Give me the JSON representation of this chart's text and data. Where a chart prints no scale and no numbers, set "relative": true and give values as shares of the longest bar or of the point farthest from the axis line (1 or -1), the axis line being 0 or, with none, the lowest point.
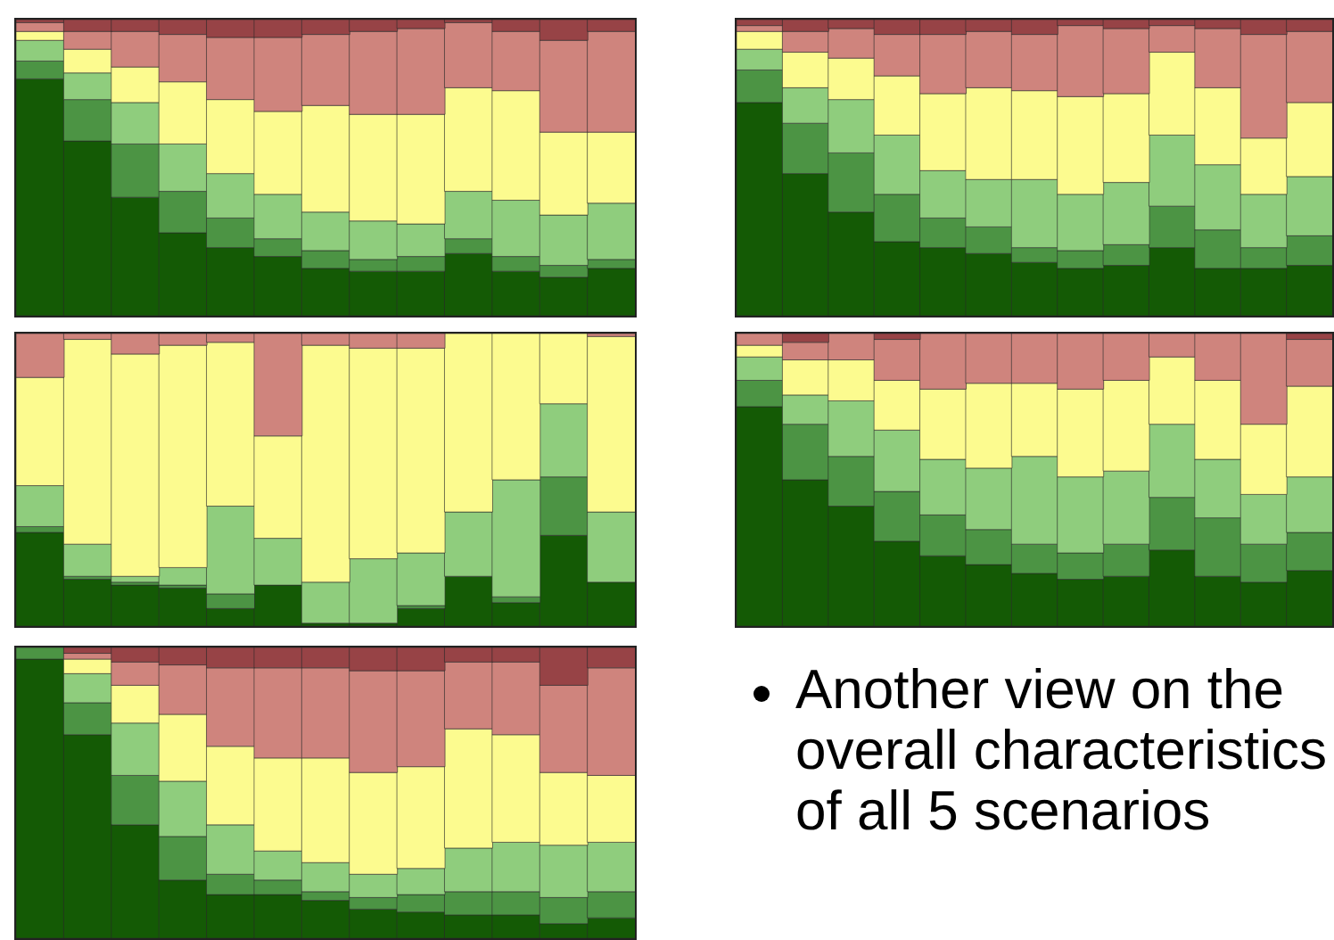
{
  "chart_data": [
    {
      "type": "bar",
      "stacked": true,
      "relative": true,
      "tick_labels": false,
      "categories": [
        null,
        null,
        null,
        null,
        null,
        null,
        null,
        null,
        null,
        null,
        null,
        null,
        null
      ],
      "series": [
        {
          "color": "#145a05",
          "values": [
            0.8,
            0.59,
            0.4,
            0.28,
            0.23,
            0.2,
            0.16,
            0.15,
            0.15,
            0.21,
            0.15,
            0.13,
            0.16
          ]
        },
        {
          "color": "#4c9444",
          "values": [
            0.06,
            0.14,
            0.18,
            0.14,
            0.1,
            0.06,
            0.06,
            0.04,
            0.05,
            0.05,
            0.05,
            0.04,
            0.03
          ]
        },
        {
          "color": "#8fcd7d",
          "values": [
            0.07,
            0.09,
            0.14,
            0.16,
            0.15,
            0.15,
            0.13,
            0.13,
            0.11,
            0.16,
            0.19,
            0.17,
            0.19
          ]
        },
        {
          "color": "#fcfb8f",
          "values": [
            0.03,
            0.08,
            0.12,
            0.21,
            0.25,
            0.28,
            0.36,
            0.36,
            0.37,
            0.35,
            0.37,
            0.28,
            0.24
          ]
        },
        {
          "color": "#cf847d",
          "values": [
            0.03,
            0.06,
            0.12,
            0.16,
            0.21,
            0.25,
            0.24,
            0.28,
            0.29,
            0.22,
            0.2,
            0.31,
            0.34
          ]
        },
        {
          "color": "#974346",
          "values": [
            0.01,
            0.04,
            0.04,
            0.05,
            0.06,
            0.06,
            0.05,
            0.04,
            0.03,
            0.01,
            0.04,
            0.07,
            0.04
          ]
        }
      ]
    },
    {
      "type": "bar",
      "stacked": true,
      "relative": true,
      "tick_labels": false,
      "categories": [
        null,
        null,
        null,
        null,
        null,
        null,
        null,
        null,
        null,
        null,
        null,
        null,
        null
      ],
      "series": [
        {
          "color": "#145a05",
          "values": [
            0.72,
            0.48,
            0.35,
            0.25,
            0.23,
            0.21,
            0.18,
            0.16,
            0.17,
            0.23,
            0.16,
            0.16,
            0.17
          ]
        },
        {
          "color": "#4c9444",
          "values": [
            0.11,
            0.17,
            0.2,
            0.16,
            0.1,
            0.09,
            0.05,
            0.06,
            0.07,
            0.14,
            0.13,
            0.07,
            0.1
          ]
        },
        {
          "color": "#8fcd7d",
          "values": [
            0.07,
            0.12,
            0.18,
            0.2,
            0.16,
            0.16,
            0.23,
            0.19,
            0.21,
            0.24,
            0.22,
            0.18,
            0.2
          ]
        },
        {
          "color": "#fcfb8f",
          "values": [
            0.06,
            0.12,
            0.14,
            0.2,
            0.26,
            0.31,
            0.3,
            0.33,
            0.3,
            0.28,
            0.26,
            0.19,
            0.25
          ]
        },
        {
          "color": "#cf847d",
          "values": [
            0.02,
            0.07,
            0.1,
            0.14,
            0.2,
            0.19,
            0.19,
            0.24,
            0.22,
            0.09,
            0.2,
            0.35,
            0.24
          ]
        },
        {
          "color": "#974346",
          "values": [
            0.02,
            0.04,
            0.03,
            0.05,
            0.05,
            0.04,
            0.05,
            0.02,
            0.03,
            0.02,
            0.03,
            0.05,
            0.04
          ]
        }
      ]
    },
    {
      "type": "bar",
      "stacked": true,
      "relative": true,
      "tick_labels": false,
      "categories": [
        null,
        null,
        null,
        null,
        null,
        null,
        null,
        null,
        null,
        null,
        null,
        null,
        null
      ],
      "series": [
        {
          "color": "#145a05",
          "values": [
            0.32,
            0.16,
            0.14,
            0.13,
            0.06,
            0.14,
            0.01,
            0.01,
            0.06,
            0.17,
            0.08,
            0.31,
            0.15
          ]
        },
        {
          "color": "#4c9444",
          "values": [
            0.02,
            0.01,
            0.01,
            0.01,
            0.05,
            0,
            0,
            0,
            0.01,
            0,
            0.02,
            0.2,
            0
          ]
        },
        {
          "color": "#8fcd7d",
          "values": [
            0.14,
            0.11,
            0.02,
            0.06,
            0.3,
            0.16,
            0.14,
            0.22,
            0.18,
            0.22,
            0.4,
            0.25,
            0.24
          ]
        },
        {
          "color": "#fcfb8f",
          "values": [
            0.37,
            0.7,
            0.76,
            0.76,
            0.56,
            0.35,
            0.81,
            0.72,
            0.7,
            0.61,
            0.5,
            0.24,
            0.6
          ]
        },
        {
          "color": "#cf847d",
          "values": [
            0.15,
            0.02,
            0.07,
            0.04,
            0.03,
            0.35,
            0.04,
            0.05,
            0.05,
            0,
            0,
            0,
            0.01
          ]
        },
        {
          "color": "#974346",
          "values": [
            0,
            0,
            0,
            0,
            0,
            0,
            0,
            0,
            0,
            0,
            0,
            0,
            0
          ]
        }
      ]
    },
    {
      "type": "bar",
      "stacked": true,
      "relative": true,
      "tick_labels": false,
      "categories": [
        null,
        null,
        null,
        null,
        null,
        null,
        null,
        null,
        null,
        null,
        null,
        null,
        null
      ],
      "series": [
        {
          "color": "#145a05",
          "values": [
            0.75,
            0.5,
            0.41,
            0.29,
            0.24,
            0.21,
            0.18,
            0.16,
            0.17,
            0.26,
            0.17,
            0.15,
            0.19
          ]
        },
        {
          "color": "#4c9444",
          "values": [
            0.09,
            0.19,
            0.17,
            0.17,
            0.14,
            0.12,
            0.1,
            0.09,
            0.11,
            0.18,
            0.2,
            0.13,
            0.13
          ]
        },
        {
          "color": "#8fcd7d",
          "values": [
            0.08,
            0.1,
            0.19,
            0.21,
            0.19,
            0.21,
            0.3,
            0.26,
            0.25,
            0.25,
            0.2,
            0.17,
            0.19
          ]
        },
        {
          "color": "#fcfb8f",
          "values": [
            0.04,
            0.12,
            0.14,
            0.17,
            0.24,
            0.29,
            0.25,
            0.3,
            0.31,
            0.23,
            0.27,
            0.24,
            0.31
          ]
        },
        {
          "color": "#cf847d",
          "values": [
            0.04,
            0.06,
            0.09,
            0.14,
            0.19,
            0.17,
            0.17,
            0.19,
            0.16,
            0.08,
            0.16,
            0.31,
            0.16
          ]
        },
        {
          "color": "#974346",
          "values": [
            0,
            0.03,
            0,
            0.02,
            0,
            0,
            0,
            0,
            0,
            0,
            0,
            0,
            0.02
          ]
        }
      ]
    },
    {
      "type": "bar",
      "stacked": true,
      "relative": true,
      "tick_labels": false,
      "categories": [
        null,
        null,
        null,
        null,
        null,
        null,
        null,
        null,
        null,
        null,
        null,
        null,
        null
      ],
      "series": [
        {
          "color": "#145a05",
          "values": [
            0.96,
            0.7,
            0.39,
            0.2,
            0.15,
            0.15,
            0.13,
            0.1,
            0.09,
            0.08,
            0.08,
            0.05,
            0.07
          ]
        },
        {
          "color": "#4c9444",
          "values": [
            0.04,
            0.11,
            0.17,
            0.15,
            0.07,
            0.05,
            0.03,
            0.04,
            0.06,
            0.08,
            0.08,
            0.09,
            0.09
          ]
        },
        {
          "color": "#8fcd7d",
          "values": [
            0,
            0.1,
            0.18,
            0.19,
            0.17,
            0.1,
            0.1,
            0.08,
            0.09,
            0.15,
            0.17,
            0.18,
            0.17
          ]
        },
        {
          "color": "#fcfb8f",
          "values": [
            0,
            0.05,
            0.13,
            0.23,
            0.27,
            0.32,
            0.36,
            0.35,
            0.35,
            0.41,
            0.37,
            0.25,
            0.23
          ]
        },
        {
          "color": "#cf847d",
          "values": [
            0,
            0.02,
            0.08,
            0.17,
            0.27,
            0.31,
            0.31,
            0.35,
            0.33,
            0.23,
            0.25,
            0.3,
            0.37
          ]
        },
        {
          "color": "#974346",
          "values": [
            0,
            0.02,
            0.05,
            0.06,
            0.07,
            0.07,
            0.07,
            0.08,
            0.08,
            0.05,
            0.05,
            0.13,
            0.07
          ]
        }
      ]
    },
    {
      "type": "other",
      "annotations": [
        "Another view on the overall characteristics of all 5 scenarios"
      ]
    }
  ]
}
